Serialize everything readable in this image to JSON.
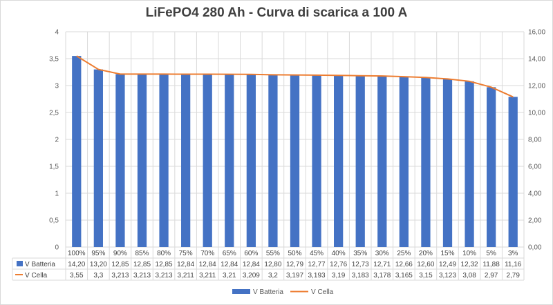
{
  "chart_data": {
    "type": "bar",
    "title": "LiFePO4 280 Ah - Curva di scarica a 100 A",
    "categories": [
      "100%",
      "95%",
      "90%",
      "85%",
      "80%",
      "75%",
      "70%",
      "65%",
      "60%",
      "55%",
      "50%",
      "45%",
      "40%",
      "35%",
      "30%",
      "25%",
      "20%",
      "15%",
      "10%",
      "5%",
      "3%"
    ],
    "series": [
      {
        "name": "V Batteria",
        "type": "bar",
        "axis": "right",
        "color": "#4472C4",
        "values": [
          14.2,
          13.2,
          12.85,
          12.85,
          12.85,
          12.84,
          12.84,
          12.84,
          12.84,
          12.8,
          12.79,
          12.77,
          12.76,
          12.73,
          12.71,
          12.66,
          12.6,
          12.49,
          12.32,
          11.88,
          11.16
        ],
        "labels": [
          "14,20",
          "13,20",
          "12,85",
          "12,85",
          "12,85",
          "12,84",
          "12,84",
          "12,84",
          "12,84",
          "12,80",
          "12,79",
          "12,77",
          "12,76",
          "12,73",
          "12,71",
          "12,66",
          "12,60",
          "12,49",
          "12,32",
          "11,88",
          "11,16"
        ]
      },
      {
        "name": "V Cella",
        "type": "line",
        "axis": "left",
        "color": "#ED7D31",
        "values": [
          3.55,
          3.3,
          3.213,
          3.213,
          3.213,
          3.211,
          3.211,
          3.21,
          3.209,
          3.2,
          3.197,
          3.193,
          3.19,
          3.183,
          3.178,
          3.165,
          3.15,
          3.123,
          3.08,
          2.97,
          2.79
        ],
        "labels": [
          "3,55",
          "3,3",
          "3,213",
          "3,213",
          "3,213",
          "3,211",
          "3,211",
          "3,21",
          "3,209",
          "3,2",
          "3,197",
          "3,193",
          "3,19",
          "3,183",
          "3,178",
          "3,165",
          "3,15",
          "3,123",
          "3,08",
          "2,97",
          "2,79"
        ]
      }
    ],
    "y_left": {
      "min": 0,
      "max": 4,
      "ticks": [
        "0",
        "0,5",
        "1",
        "1,5",
        "2",
        "2,5",
        "3",
        "3,5",
        "4"
      ]
    },
    "y_right": {
      "min": 0,
      "max": 16,
      "ticks": [
        "0,00",
        "2,00",
        "4,00",
        "6,00",
        "8,00",
        "10,00",
        "12,00",
        "14,00",
        "16,00"
      ]
    },
    "grid": true,
    "legend": [
      "V Batteria",
      "V Cella"
    ],
    "legend_position": "bottom",
    "data_table": true
  }
}
